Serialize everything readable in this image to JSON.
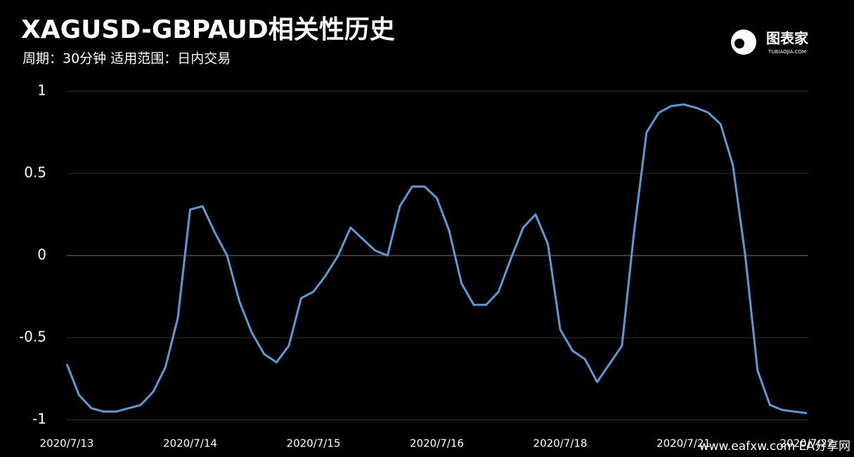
{
  "chart_data": {
    "type": "line",
    "title": "XAGUSD-GBPAUD相关性历史",
    "subtitle": "周期：30分钟  适用范围：日内交易",
    "logo": {
      "name": "图表家",
      "site": "TUBIAOJIA.COM"
    },
    "watermark": "www.eafxw.com  EA分享网",
    "categories": [
      "2020/7/13",
      null,
      null,
      null,
      null,
      null,
      null,
      null,
      null,
      null,
      "2020/7/14",
      null,
      null,
      null,
      null,
      null,
      null,
      null,
      null,
      null,
      "2020/7/15",
      null,
      null,
      null,
      null,
      null,
      null,
      null,
      null,
      null,
      "2020/7/16",
      null,
      null,
      null,
      null,
      null,
      null,
      null,
      null,
      null,
      "2020/7/18",
      null,
      null,
      null,
      null,
      null,
      null,
      null,
      null,
      null,
      "2020/7/21",
      null,
      null,
      null,
      null,
      null,
      null,
      null,
      null,
      null,
      "2020/7/22"
    ],
    "series": [
      {
        "name": "XAGUSD-GBPAUD",
        "color": "#5b9bd5",
        "values": [
          -0.66,
          -0.85,
          -0.93,
          -0.95,
          -0.95,
          -0.93,
          -0.91,
          -0.83,
          -0.68,
          -0.38,
          0.28,
          0.3,
          0.14,
          0.0,
          -0.28,
          -0.47,
          -0.6,
          -0.65,
          -0.55,
          -0.26,
          -0.22,
          -0.12,
          0.0,
          0.17,
          0.1,
          0.03,
          0.0,
          0.3,
          0.42,
          0.42,
          0.35,
          0.15,
          -0.17,
          -0.3,
          -0.3,
          -0.22,
          -0.02,
          0.17,
          0.25,
          0.07,
          -0.45,
          -0.58,
          -0.63,
          -0.77,
          -0.66,
          -0.55,
          0.15,
          0.75,
          0.87,
          0.91,
          0.92,
          0.9,
          0.87,
          0.8,
          0.55,
          0.0,
          -0.7,
          -0.91,
          -0.94,
          -0.95,
          -0.96
        ]
      }
    ],
    "ylim": [
      -1,
      1
    ],
    "yticks": [
      -1,
      -0.5,
      0,
      0.5,
      1
    ],
    "grid": true
  }
}
